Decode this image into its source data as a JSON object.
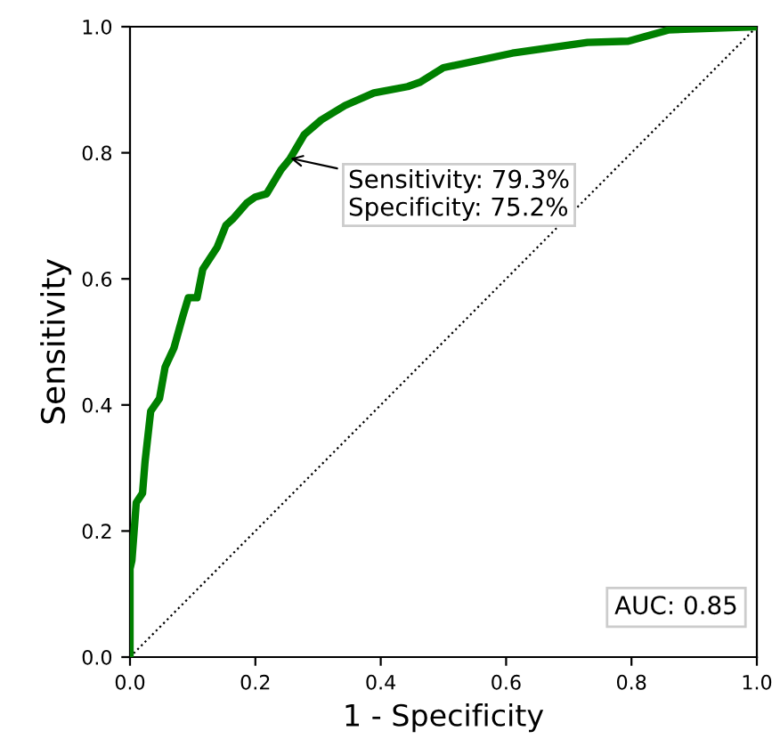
{
  "chart_data": {
    "type": "line",
    "xlabel": "1 - Specificity",
    "ylabel": "Sensitivity",
    "series": [
      {
        "color": "#008000",
        "line_style": "solid",
        "x": [
          0,
          0,
          0.003,
          0.01,
          0.02,
          0.024,
          0.033,
          0.047,
          0.056,
          0.07,
          0.084,
          0.093,
          0.107,
          0.116,
          0.139,
          0.153,
          0.164,
          0.186,
          0.2,
          0.218,
          0.241,
          0.255,
          0.278,
          0.305,
          0.343,
          0.389,
          0.443,
          0.463,
          0.5,
          0.61,
          0.73,
          0.795,
          0.86,
          0.997,
          1
        ],
        "values": [
          0,
          0.14,
          0.153,
          0.245,
          0.26,
          0.31,
          0.39,
          0.41,
          0.46,
          0.49,
          0.54,
          0.57,
          0.57,
          0.615,
          0.65,
          0.685,
          0.695,
          0.72,
          0.73,
          0.735,
          0.773,
          0.79,
          0.829,
          0.852,
          0.875,
          0.895,
          0.905,
          0.912,
          0.935,
          0.958,
          0.975,
          0.977,
          0.995,
          1.0,
          1.0
        ]
      },
      {
        "color": "#000000",
        "line_style": "dotted",
        "x": [
          0,
          1
        ],
        "values": [
          0,
          1
        ]
      }
    ],
    "xlim": [
      0,
      1
    ],
    "ylim": [
      0,
      1
    ],
    "xticks": [
      {
        "value": 0,
        "label": "0.0"
      },
      {
        "value": 0.2,
        "label": "0.2"
      },
      {
        "value": 0.4,
        "label": "0.4"
      },
      {
        "value": 0.6,
        "label": "0.6"
      },
      {
        "value": 0.8,
        "label": "0.8"
      },
      {
        "value": 1,
        "label": "1.0"
      }
    ],
    "yticks": [
      {
        "value": 0,
        "label": "0.0"
      },
      {
        "value": 0.2,
        "label": "0.2"
      },
      {
        "value": 0.4,
        "label": "0.4"
      },
      {
        "value": 0.6,
        "label": "0.6"
      },
      {
        "value": 0.8,
        "label": "0.8"
      },
      {
        "value": 1,
        "label": "1.0"
      }
    ],
    "annotations": [
      {
        "text": "Sensitivity: 79.3%\nSpecificity: 75.2%",
        "x": 0.248,
        "y": 0.793
      },
      "AUC: 0.85"
    ],
    "grid": false,
    "legend": false
  }
}
